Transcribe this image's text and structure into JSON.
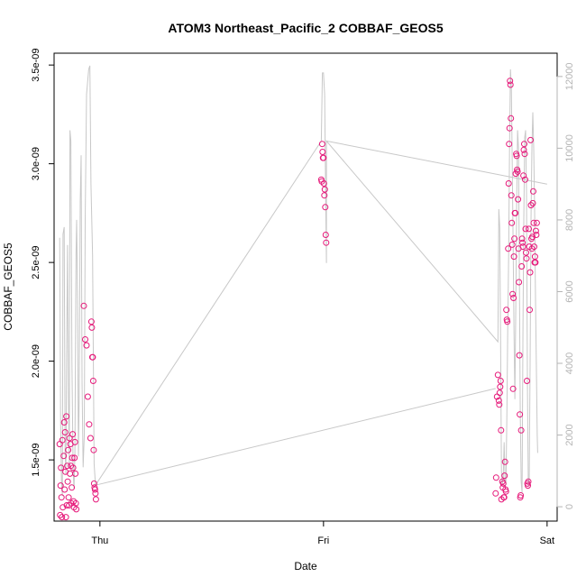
{
  "chart_data": {
    "type": "scatter",
    "title": "ATOM3 Northeast_Pacific_2 COBBAF_GEOS5",
    "xlabel": "Date",
    "ylabel": "COBBAF_GEOS5",
    "x_ticks": [
      {
        "label": "Thu",
        "day": 0
      },
      {
        "label": "Fri",
        "day": 1
      },
      {
        "label": "Sat",
        "day": 2
      }
    ],
    "y_ticks": [
      "1.5e-09",
      "2.0e-09",
      "2.5e-09",
      "3.0e-09",
      "3.5e-09"
    ],
    "y_tick_values": [
      1.5e-09,
      2e-09,
      2.5e-09,
      3e-09,
      3.5e-09
    ],
    "y2_ticks": [
      "0",
      "2000",
      "4000",
      "6000",
      "8000",
      "10000",
      "12000"
    ],
    "y2_tick_values": [
      0,
      2000,
      4000,
      6000,
      8000,
      10000,
      12000
    ],
    "xlim": [
      -0.205,
      2.045
    ],
    "ylim": [
      1.19e-09,
      3.56e-09
    ],
    "y2lim": [
      -400,
      12650
    ],
    "y2_unit": "altitude",
    "grid": false,
    "series": [
      {
        "marker": "open-circle",
        "color": "#e6197a",
        "points": [
          [
            -0.18,
            1.58e-09
          ],
          [
            -0.178,
            1.22e-09
          ],
          [
            -0.176,
            1.37e-09
          ],
          [
            -0.174,
            1.46e-09
          ],
          [
            -0.172,
            1.31e-09
          ],
          [
            -0.17,
            1.21e-09
          ],
          [
            -0.168,
            1.6e-09
          ],
          [
            -0.166,
            1.26e-09
          ],
          [
            -0.162,
            1.52e-09
          ],
          [
            -0.16,
            1.69e-09
          ],
          [
            -0.158,
            1.35e-09
          ],
          [
            -0.156,
            1.64e-09
          ],
          [
            -0.154,
            1.44e-09
          ],
          [
            -0.152,
            1.21e-09
          ],
          [
            -0.15,
            1.72e-09
          ],
          [
            -0.148,
            1.27e-09
          ],
          [
            -0.146,
            1.47e-09
          ],
          [
            -0.144,
            1.39e-09
          ],
          [
            -0.142,
            1.55e-09
          ],
          [
            -0.14,
            1.31e-09
          ],
          [
            -0.138,
            1.27e-09
          ],
          [
            -0.136,
            1.61e-09
          ],
          [
            -0.134,
            1.43e-09
          ],
          [
            -0.132,
            1.58e-09
          ],
          [
            -0.13,
            1.47e-09
          ],
          [
            -0.128,
            1.28e-09
          ],
          [
            -0.126,
            1.36e-09
          ],
          [
            -0.124,
            1.51e-09
          ],
          [
            -0.122,
            1.63e-09
          ],
          [
            -0.12,
            1.46e-09
          ],
          [
            -0.118,
            1.29e-09
          ],
          [
            -0.116,
            1.26e-09
          ],
          [
            -0.114,
            1.51e-09
          ],
          [
            -0.112,
            1.59e-09
          ],
          [
            -0.11,
            1.43e-09
          ],
          [
            -0.108,
            1.28e-09
          ],
          [
            -0.106,
            1.25e-09
          ],
          [
            -0.072,
            2.28e-09
          ],
          [
            -0.066,
            2.11e-09
          ],
          [
            -0.06,
            2.08e-09
          ],
          [
            -0.054,
            1.82e-09
          ],
          [
            -0.048,
            1.68e-09
          ],
          [
            -0.042,
            1.61e-09
          ],
          [
            -0.038,
            2.2e-09
          ],
          [
            -0.036,
            2.17e-09
          ],
          [
            -0.034,
            2.02e-09
          ],
          [
            -0.032,
            2.02e-09
          ],
          [
            -0.03,
            1.9e-09
          ],
          [
            -0.028,
            1.55e-09
          ],
          [
            -0.026,
            1.38e-09
          ],
          [
            -0.024,
            1.36e-09
          ],
          [
            -0.022,
            1.35e-09
          ],
          [
            -0.02,
            1.33e-09
          ],
          [
            -0.018,
            1.3e-09
          ],
          [
            0.99,
            2.92e-09
          ],
          [
            0.992,
            2.91e-09
          ],
          [
            0.994,
            3.1e-09
          ],
          [
            0.996,
            3.06e-09
          ],
          [
            0.998,
            3.03e-09
          ],
          [
            1.0,
            3.03e-09
          ],
          [
            1.002,
            2.9e-09
          ],
          [
            1.004,
            2.84e-09
          ],
          [
            1.006,
            2.87e-09
          ],
          [
            1.008,
            2.78e-09
          ],
          [
            1.01,
            2.64e-09
          ],
          [
            1.012,
            2.6e-09
          ],
          [
            1.77,
            1.33e-09
          ],
          [
            1.772,
            1.41e-09
          ],
          [
            1.776,
            1.82e-09
          ],
          [
            1.78,
            1.93e-09
          ],
          [
            1.784,
            1.8e-09
          ],
          [
            1.786,
            1.78e-09
          ],
          [
            1.788,
            1.84e-09
          ],
          [
            1.79,
            1.87e-09
          ],
          [
            1.792,
            1.9e-09
          ],
          [
            1.794,
            1.65e-09
          ],
          [
            1.796,
            1.3e-09
          ],
          [
            1.8,
            1.39e-09
          ],
          [
            1.802,
            1.36e-09
          ],
          [
            1.804,
            1.38e-09
          ],
          [
            1.806,
            1.31e-09
          ],
          [
            1.808,
            1.31e-09
          ],
          [
            1.81,
            1.42e-09
          ],
          [
            1.812,
            1.49e-09
          ],
          [
            1.814,
            1.35e-09
          ],
          [
            1.816,
            1.34e-09
          ],
          [
            1.818,
            2.26e-09
          ],
          [
            1.82,
            2.21e-09
          ],
          [
            1.822,
            2.2e-09
          ],
          [
            1.826,
            2.57e-09
          ],
          [
            1.828,
            2.9e-09
          ],
          [
            1.83,
            3.1e-09
          ],
          [
            1.832,
            3.18e-09
          ],
          [
            1.834,
            3.42e-09
          ],
          [
            1.836,
            3.4e-09
          ],
          [
            1.838,
            3.23e-09
          ],
          [
            1.84,
            2.84e-09
          ],
          [
            1.842,
            2.7e-09
          ],
          [
            1.844,
            2.59e-09
          ],
          [
            1.846,
            2.34e-09
          ],
          [
            1.848,
            1.86e-09
          ],
          [
            1.85,
            2.32e-09
          ],
          [
            1.852,
            2.53e-09
          ],
          [
            1.854,
            2.62e-09
          ],
          [
            1.856,
            2.75e-09
          ],
          [
            1.858,
            2.75e-09
          ],
          [
            1.86,
            2.95e-09
          ],
          [
            1.862,
            3.05e-09
          ],
          [
            1.864,
            3.04e-09
          ],
          [
            1.866,
            2.97e-09
          ],
          [
            1.868,
            2.96e-09
          ],
          [
            1.87,
            2.82e-09
          ],
          [
            1.872,
            2.57e-09
          ],
          [
            1.874,
            2.4e-09
          ],
          [
            1.876,
            2.03e-09
          ],
          [
            1.878,
            1.73e-09
          ],
          [
            1.88,
            1.31e-09
          ],
          [
            1.882,
            1.32e-09
          ],
          [
            1.884,
            1.65e-09
          ],
          [
            1.886,
            2.48e-09
          ],
          [
            1.888,
            2.62e-09
          ],
          [
            1.89,
            2.6e-09
          ],
          [
            1.892,
            2.58e-09
          ],
          [
            1.894,
            2.94e-09
          ],
          [
            1.896,
            3.07e-09
          ],
          [
            1.898,
            3.1e-09
          ],
          [
            1.9,
            3.05e-09
          ],
          [
            1.902,
            2.92e-09
          ],
          [
            1.904,
            2.67e-09
          ],
          [
            1.906,
            2.55e-09
          ],
          [
            1.908,
            2.52e-09
          ],
          [
            1.91,
            1.9e-09
          ],
          [
            1.912,
            1.38e-09
          ],
          [
            1.914,
            1.37e-09
          ],
          [
            1.916,
            1.39e-09
          ],
          [
            1.918,
            2.67e-09
          ],
          [
            1.92,
            2.58e-09
          ],
          [
            1.922,
            2.26e-09
          ],
          [
            1.924,
            2.45e-09
          ],
          [
            1.926,
            3.12e-09
          ],
          [
            1.928,
            2.79e-09
          ],
          [
            1.93,
            2.62e-09
          ],
          [
            1.932,
            2.57e-09
          ],
          [
            1.934,
            2.63e-09
          ],
          [
            1.936,
            2.8e-09
          ],
          [
            1.938,
            2.86e-09
          ],
          [
            1.94,
            2.7e-09
          ],
          [
            1.942,
            2.58e-09
          ],
          [
            1.944,
            2.5e-09
          ],
          [
            1.946,
            2.53e-09
          ],
          [
            1.948,
            2.5e-09
          ],
          [
            1.95,
            2.66e-09
          ],
          [
            1.952,
            2.64e-09
          ],
          [
            1.954,
            2.7e-09
          ]
        ]
      },
      {
        "line": "altitude",
        "color": "#c8c8c8",
        "axis": "right",
        "points": [
          [
            -0.18,
            7500
          ],
          [
            -0.176,
            2400
          ],
          [
            -0.172,
            700
          ],
          [
            -0.168,
            300
          ],
          [
            -0.165,
            7600
          ],
          [
            -0.16,
            7800
          ],
          [
            -0.156,
            1500
          ],
          [
            -0.152,
            900
          ],
          [
            -0.149,
            4200
          ],
          [
            -0.145,
            7300
          ],
          [
            -0.141,
            3000
          ],
          [
            -0.137,
            1100
          ],
          [
            -0.134,
            10500
          ],
          [
            -0.13,
            10200
          ],
          [
            -0.125,
            4000
          ],
          [
            -0.12,
            1000
          ],
          [
            -0.116,
            500
          ],
          [
            -0.112,
            1500
          ],
          [
            -0.107,
            7000
          ],
          [
            -0.104,
            8000
          ],
          [
            -0.1,
            5800
          ],
          [
            -0.096,
            1400
          ],
          [
            -0.093,
            3000
          ],
          [
            -0.088,
            8500
          ],
          [
            -0.084,
            9800
          ],
          [
            -0.08,
            3500
          ],
          [
            -0.075,
            1100
          ],
          [
            -0.07,
            2000
          ],
          [
            -0.066,
            8000
          ],
          [
            -0.06,
            11500
          ],
          [
            -0.05,
            12200
          ],
          [
            -0.045,
            12300
          ],
          [
            -0.04,
            9000
          ],
          [
            -0.033,
            7000
          ],
          [
            -0.026,
            1200
          ],
          [
            -0.02,
            600
          ],
          [
            0.99,
            10200
          ],
          [
            0.995,
            12100
          ],
          [
            1.0,
            12100
          ],
          [
            1.005,
            11500
          ],
          [
            1.01,
            8500
          ],
          [
            1.013,
            6800
          ],
          [
            1.013,
            10200
          ],
          [
            1.78,
            4600
          ],
          [
            1.784,
            8300
          ],
          [
            1.788,
            7800
          ],
          [
            1.792,
            4500
          ],
          [
            1.796,
            1000
          ],
          [
            1.8,
            600
          ],
          [
            1.804,
            800
          ],
          [
            1.808,
            1800
          ],
          [
            1.812,
            800
          ],
          [
            1.816,
            600
          ],
          [
            1.82,
            2500
          ],
          [
            1.824,
            5000
          ],
          [
            1.828,
            7000
          ],
          [
            1.832,
            10000
          ],
          [
            1.836,
            12200
          ],
          [
            1.84,
            11700
          ],
          [
            1.844,
            9500
          ],
          [
            1.848,
            7500
          ],
          [
            1.852,
            5000
          ],
          [
            1.856,
            3000
          ],
          [
            1.86,
            5500
          ],
          [
            1.864,
            8500
          ],
          [
            1.868,
            10500
          ],
          [
            1.872,
            10000
          ],
          [
            1.876,
            6500
          ],
          [
            1.88,
            2600
          ],
          [
            1.884,
            700
          ],
          [
            1.888,
            400
          ],
          [
            1.892,
            5000
          ],
          [
            1.896,
            8000
          ],
          [
            1.9,
            10300
          ],
          [
            1.904,
            10500
          ],
          [
            1.908,
            8800
          ],
          [
            1.912,
            3500
          ],
          [
            1.916,
            600
          ],
          [
            1.92,
            700
          ],
          [
            1.924,
            4000
          ],
          [
            1.928,
            8000
          ],
          [
            1.932,
            10000
          ],
          [
            1.936,
            11000
          ],
          [
            1.94,
            10000
          ],
          [
            1.944,
            8300
          ],
          [
            1.948,
            6000
          ],
          [
            1.952,
            4000
          ],
          [
            1.956,
            2000
          ],
          [
            1.958,
            1500
          ]
        ]
      },
      {
        "line": "connector",
        "color": "#c8c8c8",
        "axis": "right",
        "points": [
          [
            -0.02,
            600
          ],
          [
            1.77,
            3300
          ]
        ]
      },
      {
        "line": "connector",
        "color": "#c8c8c8",
        "axis": "right",
        "points": [
          [
            1.013,
            10200
          ],
          [
            2.0,
            9000
          ]
        ]
      }
    ]
  }
}
